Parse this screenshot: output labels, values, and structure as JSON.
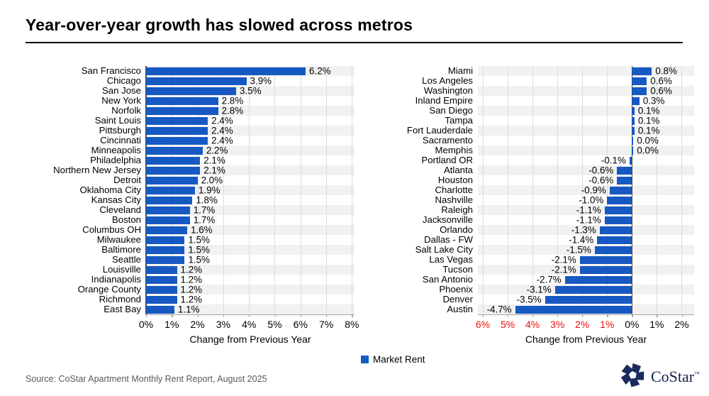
{
  "title": "Year-over-year growth has slowed across metros",
  "source": "Source: CoStar Apartment Monthly Rent Report, August 2025",
  "legend": {
    "label": "Market Rent",
    "color": "#1659c2"
  },
  "logo": {
    "text": "CoStar",
    "tm": "™"
  },
  "colors": {
    "bar_blue": "#1659c2",
    "band_gray": "#f1f1f1",
    "gridline": "#dcdcdc",
    "axis_gray": "#a6a6a6",
    "negative_tick_red": "#ee1111",
    "logo_navy": "#141f4d",
    "source_gray": "#595959"
  },
  "chart_data": [
    {
      "type": "bar",
      "orientation": "horizontal",
      "xlabel": "Change from Previous Year",
      "xlim": [
        0,
        8.1
      ],
      "grid": true,
      "ticks": [
        {
          "v": 0,
          "label": "0%",
          "red": false
        },
        {
          "v": 1,
          "label": "1%",
          "red": false
        },
        {
          "v": 2,
          "label": "2%",
          "red": false
        },
        {
          "v": 3,
          "label": "3%",
          "red": false
        },
        {
          "v": 4,
          "label": "4%",
          "red": false
        },
        {
          "v": 5,
          "label": "5%",
          "red": false
        },
        {
          "v": 6,
          "label": "6%",
          "red": false
        },
        {
          "v": 7,
          "label": "7%",
          "red": false
        },
        {
          "v": 8,
          "label": "8%",
          "red": false
        }
      ],
      "series_name": "Market Rent",
      "categories": [
        "San Francisco",
        "Chicago",
        "San Jose",
        "New York",
        "Norfolk",
        "Saint Louis",
        "Pittsburgh",
        "Cincinnati",
        "Minneapolis",
        "Philadelphia",
        "Northern New Jersey",
        "Detroit",
        "Oklahoma City",
        "Kansas City",
        "Cleveland",
        "Boston",
        "Columbus OH",
        "Milwaukee",
        "Baltimore",
        "Seattle",
        "Louisville",
        "Indianapolis",
        "Orange County",
        "Richmond",
        "East Bay"
      ],
      "values": [
        6.2,
        3.9,
        3.5,
        2.8,
        2.8,
        2.4,
        2.4,
        2.4,
        2.2,
        2.1,
        2.1,
        2.0,
        1.9,
        1.8,
        1.7,
        1.7,
        1.6,
        1.5,
        1.5,
        1.5,
        1.2,
        1.2,
        1.2,
        1.2,
        1.1
      ],
      "value_labels": [
        "6.2%",
        "3.9%",
        "3.5%",
        "2.8%",
        "2.8%",
        "2.4%",
        "2.4%",
        "2.4%",
        "2.2%",
        "2.1%",
        "2.1%",
        "2.0%",
        "1.9%",
        "1.8%",
        "1.7%",
        "1.7%",
        "1.6%",
        "1.5%",
        "1.5%",
        "1.5%",
        "1.2%",
        "1.2%",
        "1.2%",
        "1.2%",
        "1.1%"
      ]
    },
    {
      "type": "bar",
      "orientation": "horizontal",
      "xlabel": "Change from Previous Year",
      "xlim": [
        -6.2,
        2.5
      ],
      "grid": true,
      "ticks": [
        {
          "v": -6,
          "label": "6%",
          "red": true
        },
        {
          "v": -5,
          "label": "5%",
          "red": true
        },
        {
          "v": -4,
          "label": "4%",
          "red": true
        },
        {
          "v": -3,
          "label": "3%",
          "red": true
        },
        {
          "v": -2,
          "label": "2%",
          "red": true
        },
        {
          "v": -1,
          "label": "1%",
          "red": true
        },
        {
          "v": 0,
          "label": "0%",
          "red": false
        },
        {
          "v": 1,
          "label": "1%",
          "red": false
        },
        {
          "v": 2,
          "label": "2%",
          "red": false
        }
      ],
      "series_name": "Market Rent",
      "categories": [
        "Miami",
        "Los Angeles",
        "Washington",
        "Inland Empire",
        "San Diego",
        "Tampa",
        "Fort Lauderdale",
        "Sacramento",
        "Memphis",
        "Portland OR",
        "Atlanta",
        "Houston",
        "Charlotte",
        "Nashville",
        "Raleigh",
        "Jacksonville",
        "Orlando",
        "Dallas - FW",
        "Salt Lake City",
        "Las Vegas",
        "Tucson",
        "San Antonio",
        "Phoenix",
        "Denver",
        "Austin"
      ],
      "values": [
        0.8,
        0.6,
        0.6,
        0.3,
        0.1,
        0.1,
        0.1,
        0.0,
        0.0,
        -0.1,
        -0.6,
        -0.6,
        -0.9,
        -1.0,
        -1.1,
        -1.1,
        -1.3,
        -1.4,
        -1.5,
        -2.1,
        -2.1,
        -2.7,
        -3.1,
        -3.5,
        -4.7
      ],
      "value_labels": [
        "0.8%",
        "0.6%",
        "0.6%",
        "0.3%",
        "0.1%",
        "0.1%",
        "0.1%",
        "0.0%",
        "0.0%",
        "-0.1%",
        "-0.6%",
        "-0.6%",
        "-0.9%",
        "-1.0%",
        "-1.1%",
        "-1.1%",
        "-1.3%",
        "-1.4%",
        "-1.5%",
        "-2.1%",
        "-2.1%",
        "-2.7%",
        "-3.1%",
        "-3.5%",
        "-4.7%"
      ]
    }
  ]
}
